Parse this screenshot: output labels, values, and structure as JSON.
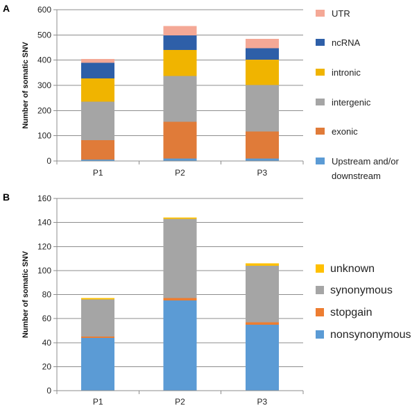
{
  "chart_data": [
    {
      "panel": "A",
      "type": "bar",
      "stacked": true,
      "title": "",
      "xlabel": "",
      "ylabel": "Number of somatic SNV",
      "ylim": [
        0,
        600
      ],
      "yticks": [
        0,
        100,
        200,
        300,
        400,
        500,
        600
      ],
      "grid": true,
      "legend_position": "right",
      "categories": [
        "P1",
        "P2",
        "P3"
      ],
      "series": [
        {
          "name": "Upstream and/or downstream",
          "color": "#5b9bd5",
          "values": [
            5,
            10,
            10
          ]
        },
        {
          "name": "exonic",
          "color": "#e07b39",
          "values": [
            78,
            145,
            107
          ]
        },
        {
          "name": "intergenic",
          "color": "#a5a5a5",
          "values": [
            152,
            182,
            185
          ]
        },
        {
          "name": "intronic",
          "color": "#f0b400",
          "values": [
            93,
            103,
            100
          ]
        },
        {
          "name": "ncRNA",
          "color": "#2e5fa8",
          "values": [
            62,
            58,
            45
          ]
        },
        {
          "name": "UTR",
          "color": "#f4a896",
          "values": [
            15,
            37,
            38
          ]
        }
      ]
    },
    {
      "panel": "B",
      "type": "bar",
      "stacked": true,
      "title": "",
      "xlabel": "",
      "ylabel": "Number  of somatic SNV",
      "ylim": [
        0,
        160
      ],
      "yticks": [
        0,
        20,
        40,
        60,
        80,
        100,
        120,
        140,
        160
      ],
      "grid": true,
      "legend_position": "right",
      "categories": [
        "P1",
        "P2",
        "P3"
      ],
      "series": [
        {
          "name": "nonsynonymous",
          "color": "#5b9bd5",
          "values": [
            44,
            75,
            55
          ]
        },
        {
          "name": "stopgain",
          "color": "#ed7d31",
          "values": [
            1,
            2,
            2
          ]
        },
        {
          "name": "synonymous",
          "color": "#a5a5a5",
          "values": [
            31,
            66,
            47
          ]
        },
        {
          "name": "unknown",
          "color": "#ffc000",
          "values": [
            1,
            1,
            2
          ]
        }
      ]
    }
  ]
}
